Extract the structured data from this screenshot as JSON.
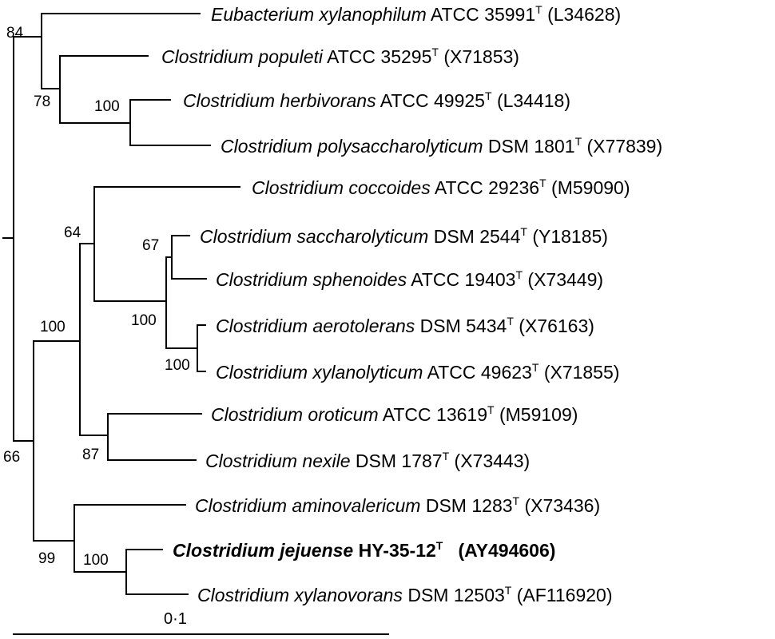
{
  "taxa": [
    {
      "genus_species": "Eubacterium xylanophilum",
      "strain": "ATCC 35991",
      "sup": "T",
      "accession": "(L34628)"
    },
    {
      "genus_species": "Clostridium populeti",
      "strain": "ATCC 35295",
      "sup": "T",
      "accession": "(X71853)"
    },
    {
      "genus_species": "Clostridium herbivorans",
      "strain": "ATCC 49925",
      "sup": "T",
      "accession": "(L34418)"
    },
    {
      "genus_species": "Clostridium polysaccharolyticum",
      "strain": "DSM 1801",
      "sup": "T",
      "accession": "(X77839)"
    },
    {
      "genus_species": "Clostridium coccoides",
      "strain": "ATCC 29236",
      "sup": "T",
      "accession": "(M59090)"
    },
    {
      "genus_species": "Clostridium saccharolyticum",
      "strain": "DSM 2544",
      "sup": "T",
      "accession": "(Y18185)"
    },
    {
      "genus_species": "Clostridium sphenoides",
      "strain": "ATCC 19403",
      "sup": "T",
      "accession": "(X73449)"
    },
    {
      "genus_species": "Clostridium aerotolerans",
      "strain": "DSM 5434",
      "sup": "T",
      "accession": "(X76163)"
    },
    {
      "genus_species": "Clostridium xylanolyticum",
      "strain": "ATCC 49623",
      "sup": "T",
      "accession": "(X71855)"
    },
    {
      "genus_species": "Clostridium oroticum",
      "strain": "ATCC 13619",
      "sup": "T",
      "accession": "(M59109)"
    },
    {
      "genus_species": "Clostridium nexile",
      "strain": "DSM 1787",
      "sup": "T",
      "accession": "(X73443)"
    },
    {
      "genus_species": "Clostridium aminovalericum",
      "strain": "DSM 1283",
      "sup": "T",
      "accession": "(X73436)"
    },
    {
      "genus_species": "Clostridium jejuense",
      "strain": "HY-35-12",
      "sup": "T",
      "accession": "(AY494606)"
    },
    {
      "genus_species": "Clostridium xylanovorans",
      "strain": "DSM 12503",
      "sup": "T",
      "accession": "(AF116920)"
    }
  ],
  "bootstrap": [
    "84",
    "78",
    "100",
    "64",
    "67",
    "100",
    "100",
    "100",
    "87",
    "66",
    "99",
    "100"
  ],
  "scale_bar": {
    "label": "0·1"
  }
}
